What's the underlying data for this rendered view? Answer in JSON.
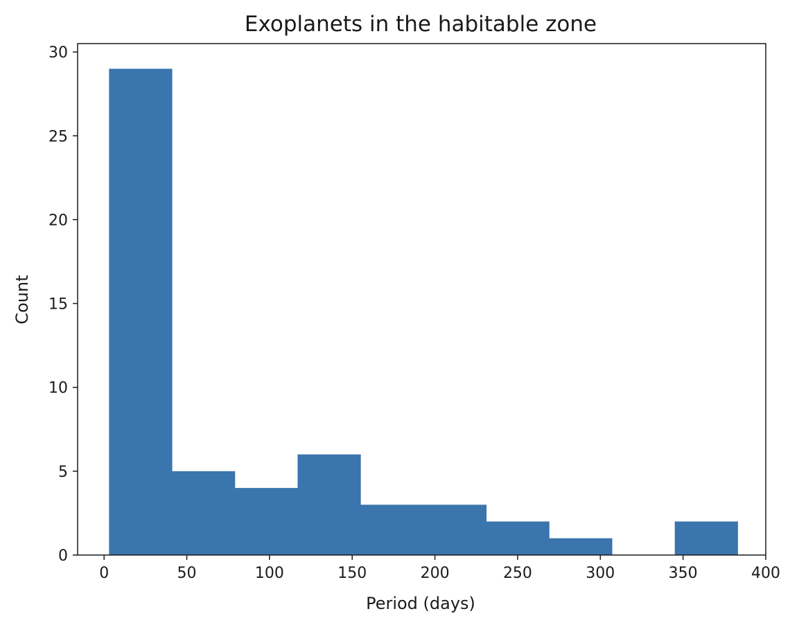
{
  "chart_data": {
    "type": "histogram",
    "title": "Exoplanets in the habitable zone",
    "xlabel": "Period (days)",
    "ylabel": "Count",
    "xlim": [
      -16,
      400
    ],
    "ylim": [
      0,
      30.5
    ],
    "xticks": [
      0,
      50,
      100,
      150,
      200,
      250,
      300,
      350,
      400
    ],
    "yticks": [
      0,
      5,
      10,
      15,
      20,
      25,
      30
    ],
    "bins": [
      {
        "start": 3,
        "end": 41,
        "count": 29
      },
      {
        "start": 41,
        "end": 79,
        "count": 5
      },
      {
        "start": 79,
        "end": 117,
        "count": 4
      },
      {
        "start": 117,
        "end": 155,
        "count": 6
      },
      {
        "start": 155,
        "end": 193,
        "count": 3
      },
      {
        "start": 193,
        "end": 231,
        "count": 3
      },
      {
        "start": 231,
        "end": 269,
        "count": 2
      },
      {
        "start": 269,
        "end": 307,
        "count": 1
      },
      {
        "start": 307,
        "end": 345,
        "count": 0
      },
      {
        "start": 345,
        "end": 383,
        "count": 2
      }
    ],
    "bar_color": "#3a75ae",
    "grid": false
  }
}
